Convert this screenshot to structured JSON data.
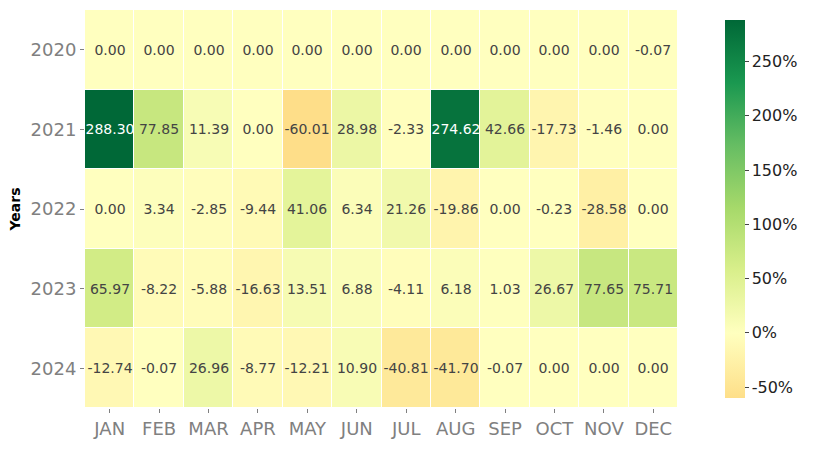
{
  "chart_data": {
    "type": "heatmap",
    "y_label": "Years",
    "categories": [
      "JAN",
      "FEB",
      "MAR",
      "APR",
      "MAY",
      "JUN",
      "JUL",
      "AUG",
      "SEP",
      "OCT",
      "NOV",
      "DEC"
    ],
    "rows": [
      "2020",
      "2021",
      "2022",
      "2023",
      "2024"
    ],
    "values": [
      [
        0.0,
        0.0,
        0.0,
        0.0,
        0.0,
        0.0,
        0.0,
        0.0,
        0.0,
        0.0,
        0.0,
        -0.07
      ],
      [
        288.3,
        77.85,
        11.39,
        0.0,
        -60.01,
        28.98,
        -2.33,
        274.62,
        42.66,
        -17.73,
        -1.46,
        0.0
      ],
      [
        0.0,
        3.34,
        -2.85,
        -9.44,
        41.06,
        6.34,
        21.26,
        -19.86,
        0.0,
        -0.23,
        -28.58,
        0.0
      ],
      [
        65.97,
        -8.22,
        -5.88,
        -16.63,
        13.51,
        6.88,
        -4.11,
        6.18,
        1.03,
        26.67,
        77.65,
        75.71
      ],
      [
        -12.74,
        -0.07,
        26.96,
        -8.77,
        -12.21,
        10.9,
        -40.81,
        -41.7,
        -0.07,
        0.0,
        0.0,
        0.0
      ]
    ],
    "value_labels": [
      [
        "0.00",
        "0.00",
        "0.00",
        "0.00",
        "0.00",
        "0.00",
        "0.00",
        "0.00",
        "0.00",
        "0.00",
        "0.00",
        "-0.07"
      ],
      [
        "288.30",
        "77.85",
        "11.39",
        "0.00",
        "-60.01",
        "28.98",
        "-2.33",
        "274.62",
        "42.66",
        "-17.73",
        "-1.46",
        "0.00"
      ],
      [
        "0.00",
        "3.34",
        "-2.85",
        "-9.44",
        "41.06",
        "6.34",
        "21.26",
        "-19.86",
        "0.00",
        "-0.23",
        "-28.58",
        "0.00"
      ],
      [
        "65.97",
        "-8.22",
        "-5.88",
        "-16.63",
        "13.51",
        "6.88",
        "-4.11",
        "6.18",
        "1.03",
        "26.67",
        "77.65",
        "75.71"
      ],
      [
        "-12.74",
        "-0.07",
        "26.96",
        "-8.77",
        "-12.21",
        "10.90",
        "-40.81",
        "-41.70",
        "-0.07",
        "0.00",
        "0.00",
        "0.00"
      ]
    ],
    "data_labels": true,
    "colorbar_range": [
      -60.01,
      288.3
    ],
    "colorbar_ticks": [
      {
        "value": -50,
        "label": "-50%"
      },
      {
        "value": 0,
        "label": "0%"
      },
      {
        "value": 50,
        "label": "50%"
      },
      {
        "value": 100,
        "label": "100%"
      },
      {
        "value": 150,
        "label": "150%"
      },
      {
        "value": 200,
        "label": "200%"
      },
      {
        "value": 250,
        "label": "250%"
      }
    ]
  }
}
